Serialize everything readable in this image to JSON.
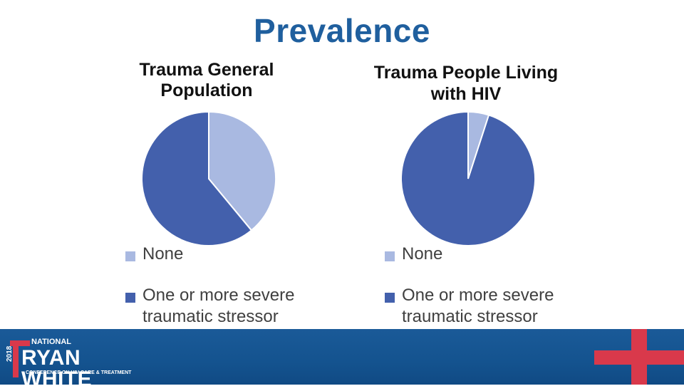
{
  "slide": {
    "title": "Prevalence"
  },
  "chart_data": [
    {
      "type": "pie",
      "title_lines": [
        "Trauma General",
        "Population"
      ],
      "labels": [
        "None",
        "One or more severe traumatic stressor"
      ],
      "values": [
        39,
        61
      ],
      "colors": [
        "#a9b9e1",
        "#4360ac"
      ],
      "legend_position": "bottom"
    },
    {
      "type": "pie",
      "title_lines": [
        "Trauma People Living",
        "with HIV"
      ],
      "labels": [
        "None",
        "One or more severe traumatic stressor"
      ],
      "values": [
        5,
        95
      ],
      "colors": [
        "#a9b9e1",
        "#4360ac"
      ],
      "legend_position": "bottom"
    }
  ],
  "legend_text": {
    "none": "None",
    "severe_line1": "One or more severe",
    "severe_line2": "traumatic stressor"
  },
  "footer": {
    "logo_year": "2018",
    "logo_national": "NATIONAL",
    "logo_name": "RYAN WHITE",
    "logo_sub": "CONFERENCE ON HIV CARE & TREATMENT"
  }
}
